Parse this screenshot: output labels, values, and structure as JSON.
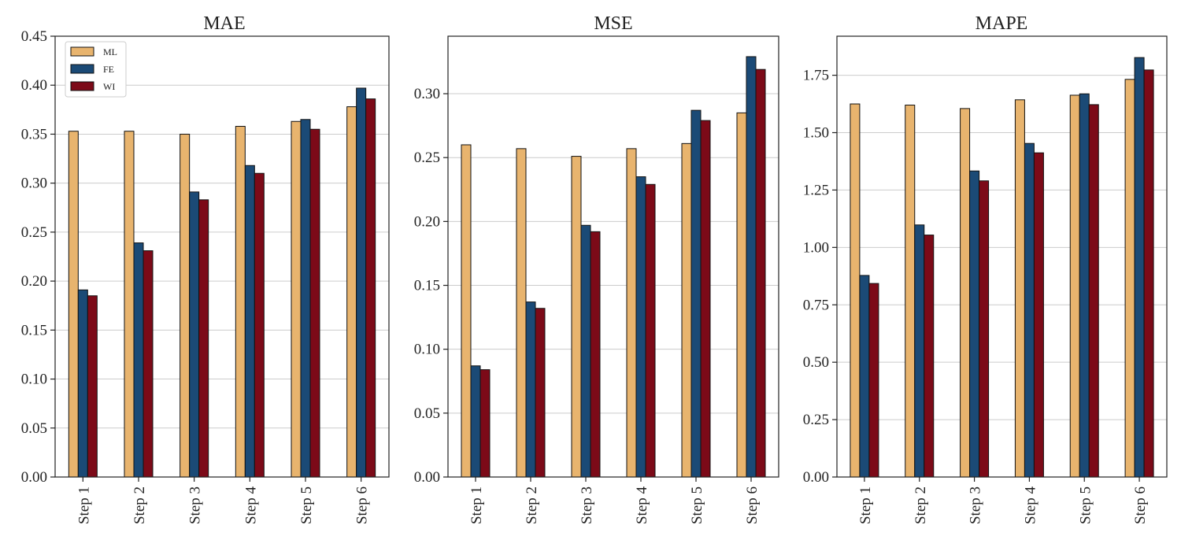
{
  "chart_data": [
    {
      "type": "bar",
      "title": "MAE",
      "categories": [
        "Step 1",
        "Step 2",
        "Step 3",
        "Step 4",
        "Step 5",
        "Step 6"
      ],
      "series": [
        {
          "name": "ML",
          "values": [
            0.353,
            0.353,
            0.35,
            0.358,
            0.363,
            0.378
          ]
        },
        {
          "name": "FE",
          "values": [
            0.191,
            0.239,
            0.291,
            0.318,
            0.365,
            0.397
          ]
        },
        {
          "name": "WI",
          "values": [
            0.185,
            0.231,
            0.283,
            0.31,
            0.355,
            0.386
          ]
        }
      ],
      "ylim": [
        0,
        0.45
      ],
      "yticks": [
        "0.00",
        "0.05",
        "0.10",
        "0.15",
        "0.20",
        "0.25",
        "0.30",
        "0.35",
        "0.40",
        "0.45"
      ],
      "grid": true,
      "legend": "top-left"
    },
    {
      "type": "bar",
      "title": "MSE",
      "categories": [
        "Step 1",
        "Step 2",
        "Step 3",
        "Step 4",
        "Step 5",
        "Step 6"
      ],
      "series": [
        {
          "name": "ML",
          "values": [
            0.26,
            0.257,
            0.251,
            0.257,
            0.261,
            0.285
          ]
        },
        {
          "name": "FE",
          "values": [
            0.087,
            0.137,
            0.197,
            0.235,
            0.287,
            0.329
          ]
        },
        {
          "name": "WI",
          "values": [
            0.084,
            0.132,
            0.192,
            0.229,
            0.279,
            0.319
          ]
        }
      ],
      "ylim": [
        0,
        0.345
      ],
      "yticks": [
        "0.00",
        "0.05",
        "0.10",
        "0.15",
        "0.20",
        "0.25",
        "0.30"
      ],
      "grid": true
    },
    {
      "type": "bar",
      "title": "MAPE",
      "categories": [
        "Step 1",
        "Step 2",
        "Step 3",
        "Step 4",
        "Step 5",
        "Step 6"
      ],
      "series": [
        {
          "name": "ML",
          "values": [
            1.625,
            1.62,
            1.605,
            1.643,
            1.663,
            1.732
          ]
        },
        {
          "name": "FE",
          "values": [
            0.878,
            1.098,
            1.333,
            1.453,
            1.669,
            1.827
          ]
        },
        {
          "name": "WI",
          "values": [
            0.843,
            1.054,
            1.29,
            1.412,
            1.622,
            1.773
          ]
        }
      ],
      "ylim": [
        0,
        1.92
      ],
      "yticks": [
        "0.00",
        "0.25",
        "0.50",
        "0.75",
        "1.00",
        "1.25",
        "1.50",
        "1.75"
      ],
      "grid": true
    }
  ],
  "colors": {
    "ML": "#E8B46E",
    "FE": "#1B4A76",
    "WI": "#7C0A18"
  }
}
